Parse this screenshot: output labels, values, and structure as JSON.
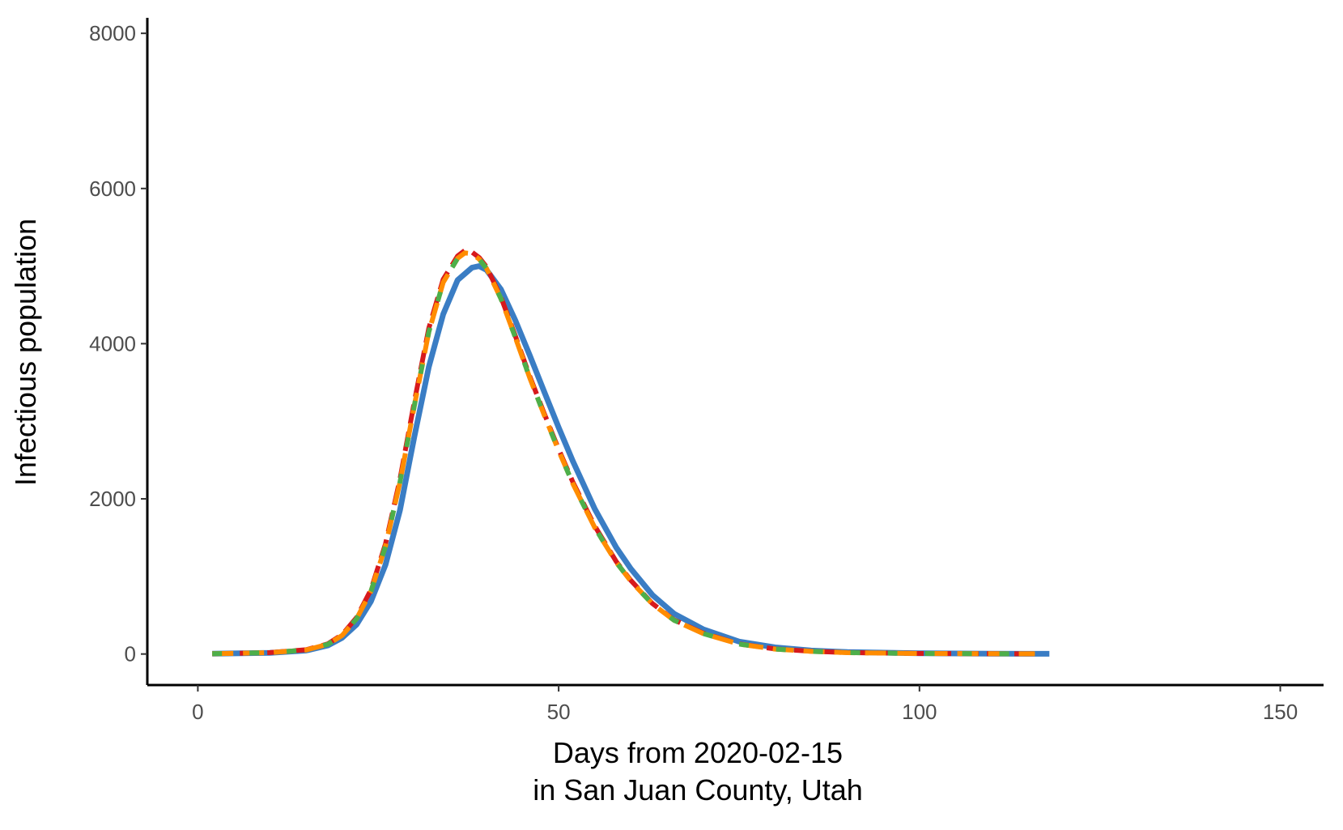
{
  "chart_data": {
    "type": "line",
    "title": "",
    "xlabel_line1": "Days from 2020-02-15",
    "xlabel_line2": "in San Juan County, Utah",
    "ylabel": "Infectious population",
    "xlim": [
      -7,
      156
    ],
    "ylim": [
      -400,
      8200
    ],
    "x_ticks": [
      0,
      50,
      100,
      150
    ],
    "y_ticks": [
      0,
      2000,
      4000,
      6000,
      8000
    ],
    "grid": false,
    "legend": "none",
    "series": [
      {
        "color": "#3a7dc4",
        "dash": "",
        "x": [
          2,
          5,
          10,
          15,
          18,
          20,
          22,
          24,
          26,
          28,
          30,
          32,
          34,
          36,
          38,
          39,
          40,
          42,
          44,
          46,
          48,
          50,
          52,
          55,
          58,
          60,
          63,
          66,
          70,
          75,
          80,
          85,
          90,
          100,
          110,
          118
        ],
        "values": [
          5,
          8,
          15,
          45,
          110,
          210,
          380,
          680,
          1150,
          1850,
          2800,
          3700,
          4380,
          4820,
          4980,
          5000,
          4950,
          4700,
          4300,
          3850,
          3380,
          2920,
          2480,
          1870,
          1370,
          1100,
          760,
          520,
          320,
          160,
          85,
          45,
          25,
          10,
          5,
          3
        ]
      },
      {
        "color": "#d7191c",
        "dash": "24 10",
        "x": [
          2,
          5,
          10,
          15,
          18,
          20,
          22,
          24,
          26,
          28,
          30,
          32,
          34,
          36,
          37,
          38,
          39,
          40,
          42,
          44,
          46,
          48,
          50,
          52,
          55,
          58,
          60,
          63,
          66,
          70,
          75,
          80,
          85,
          90,
          100,
          110,
          116
        ],
        "values": [
          5,
          8,
          18,
          55,
          130,
          250,
          470,
          830,
          1420,
          2250,
          3250,
          4200,
          4830,
          5130,
          5200,
          5180,
          5110,
          4990,
          4600,
          4100,
          3580,
          3100,
          2640,
          2210,
          1650,
          1190,
          950,
          650,
          440,
          270,
          130,
          65,
          35,
          18,
          7,
          4,
          3
        ]
      },
      {
        "color": "#ff8c00",
        "dash": "26 12",
        "x": [
          2,
          5,
          10,
          15,
          18,
          20,
          22,
          24,
          26,
          28,
          30,
          32,
          34,
          36,
          37,
          38,
          39,
          40,
          42,
          44,
          46,
          48,
          50,
          52,
          55,
          58,
          60,
          63,
          66,
          70,
          75,
          80,
          85,
          90,
          100,
          110,
          116
        ],
        "values": [
          5,
          8,
          17,
          52,
          125,
          240,
          455,
          810,
          1390,
          2210,
          3200,
          4150,
          4790,
          5100,
          5170,
          5160,
          5090,
          4970,
          4580,
          4080,
          3560,
          3080,
          2620,
          2190,
          1630,
          1180,
          940,
          645,
          435,
          265,
          128,
          63,
          34,
          17,
          7,
          4,
          3
        ]
      },
      {
        "color": "#4daf4a",
        "dash": "12 34",
        "x": [
          2,
          5,
          10,
          15,
          18,
          20,
          22,
          24,
          26,
          28,
          30,
          32,
          34,
          36,
          37,
          38,
          39,
          40,
          42,
          44,
          46,
          48,
          50,
          52,
          55,
          58,
          60,
          63,
          66,
          70,
          75,
          80,
          85,
          90,
          100,
          110,
          116
        ],
        "values": [
          5,
          8,
          17,
          52,
          125,
          240,
          455,
          810,
          1390,
          2210,
          3200,
          4150,
          4790,
          5100,
          5170,
          5160,
          5090,
          4970,
          4580,
          4080,
          3560,
          3080,
          2620,
          2190,
          1630,
          1180,
          940,
          645,
          435,
          265,
          128,
          63,
          34,
          17,
          7,
          4,
          3
        ]
      }
    ]
  }
}
